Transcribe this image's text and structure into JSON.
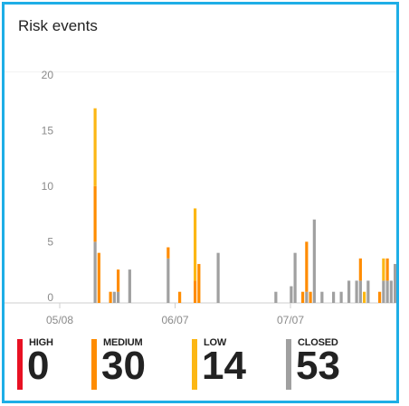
{
  "card": {
    "title": "Risk events"
  },
  "colors": {
    "high": "#e81123",
    "medium": "#ff8c00",
    "low": "#fcb714",
    "closed": "#a0a0a0",
    "border": "#1eaee6"
  },
  "legend": [
    {
      "key": "high",
      "label": "HIGH",
      "count": "0",
      "color": "#e81123"
    },
    {
      "key": "medium",
      "label": "MEDIUM",
      "count": "30",
      "color": "#ff8c00"
    },
    {
      "key": "low",
      "label": "LOW",
      "count": "14",
      "color": "#fcb714"
    },
    {
      "key": "closed",
      "label": "CLOSED",
      "count": "53",
      "color": "#a0a0a0"
    }
  ],
  "chart_data": {
    "type": "bar",
    "stacked": true,
    "title": "",
    "xlabel": "",
    "ylabel": "",
    "ylim": [
      0,
      20
    ],
    "y_ticks": [
      0,
      5,
      10,
      15,
      20
    ],
    "x_ticks": [
      "05/08",
      "06/07",
      "07/07"
    ],
    "x_tick_days": [
      0,
      30,
      60
    ],
    "grid": false,
    "legend_position": "bottom",
    "series_order": [
      "closed",
      "medium",
      "low"
    ],
    "series": [
      {
        "name": "CLOSED",
        "key": "closed",
        "color": "#a0a0a0",
        "days": [
          10,
          15,
          16,
          19,
          29,
          42,
          57,
          61,
          62,
          65,
          67,
          69,
          72,
          74,
          76,
          78,
          79,
          81,
          85,
          86,
          87,
          88
        ],
        "values": [
          5.5,
          1,
          1,
          3,
          4,
          4.5,
          1,
          1.5,
          4.5,
          1,
          7.5,
          1,
          1,
          1,
          2,
          2,
          2,
          2,
          2,
          2,
          2,
          3.5
        ]
      },
      {
        "name": "MEDIUM",
        "key": "medium",
        "color": "#ff8c00",
        "days": [
          10,
          11,
          14,
          16,
          29,
          32,
          36,
          37,
          64,
          65,
          66,
          79,
          84,
          86
        ],
        "values": [
          5,
          4.5,
          1,
          2,
          1,
          1,
          2,
          3.5,
          1,
          4.5,
          1,
          2,
          1,
          2
        ]
      },
      {
        "name": "LOW",
        "key": "low",
        "color": "#fcb714",
        "days": [
          10,
          36,
          80,
          85
        ],
        "values": [
          7,
          6.5,
          1,
          2
        ]
      }
    ]
  }
}
